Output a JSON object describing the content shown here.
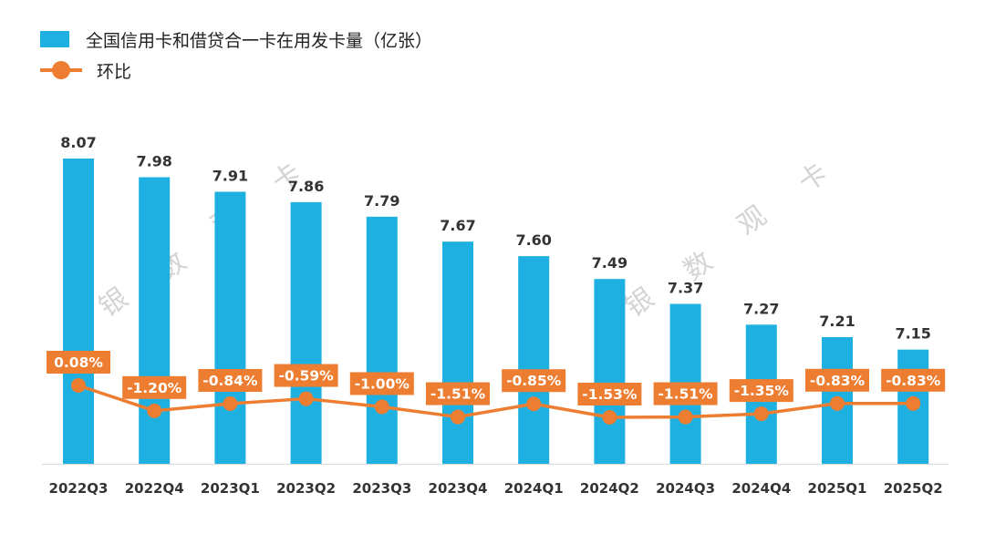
{
  "colors": {
    "bar": "#1fb0e2",
    "line": "#ed7d31",
    "text": "#333333",
    "watermark": "#d4d4d4"
  },
  "legend": {
    "bar_label": "全国信用卡和借贷合一卡在用发卡量（亿张）",
    "line_label": "环比"
  },
  "watermark": {
    "text": [
      "银",
      "数",
      "观",
      "卡"
    ]
  },
  "chart_data": {
    "type": "bar",
    "categories": [
      "2022Q3",
      "2022Q4",
      "2023Q1",
      "2023Q2",
      "2023Q3",
      "2023Q4",
      "2024Q1",
      "2024Q2",
      "2024Q3",
      "2024Q4",
      "2025Q1",
      "2025Q2"
    ],
    "series": [
      {
        "name": "全国信用卡和借贷合一卡在用发卡量（亿张）",
        "type": "bar",
        "values": [
          8.07,
          7.98,
          7.91,
          7.86,
          7.79,
          7.67,
          7.6,
          7.49,
          7.37,
          7.27,
          7.21,
          7.15
        ],
        "labels": [
          "8.07",
          "7.98",
          "7.91",
          "7.86",
          "7.79",
          "7.67",
          "7.60",
          "7.49",
          "7.37",
          "7.27",
          "7.21",
          "7.15"
        ]
      },
      {
        "name": "环比",
        "type": "line",
        "values": [
          0.08,
          -1.2,
          -0.84,
          -0.59,
          -1.0,
          -1.51,
          -0.85,
          -1.53,
          -1.51,
          -1.35,
          -0.83,
          -0.83
        ],
        "labels": [
          "0.08%",
          "-1.20%",
          "-0.84%",
          "-0.59%",
          "-1.00%",
          "-1.51%",
          "-0.85%",
          "-1.53%",
          "-1.51%",
          "-1.35%",
          "-0.83%",
          "-0.83%"
        ]
      }
    ],
    "legend_position": "top-left",
    "grid": false
  }
}
